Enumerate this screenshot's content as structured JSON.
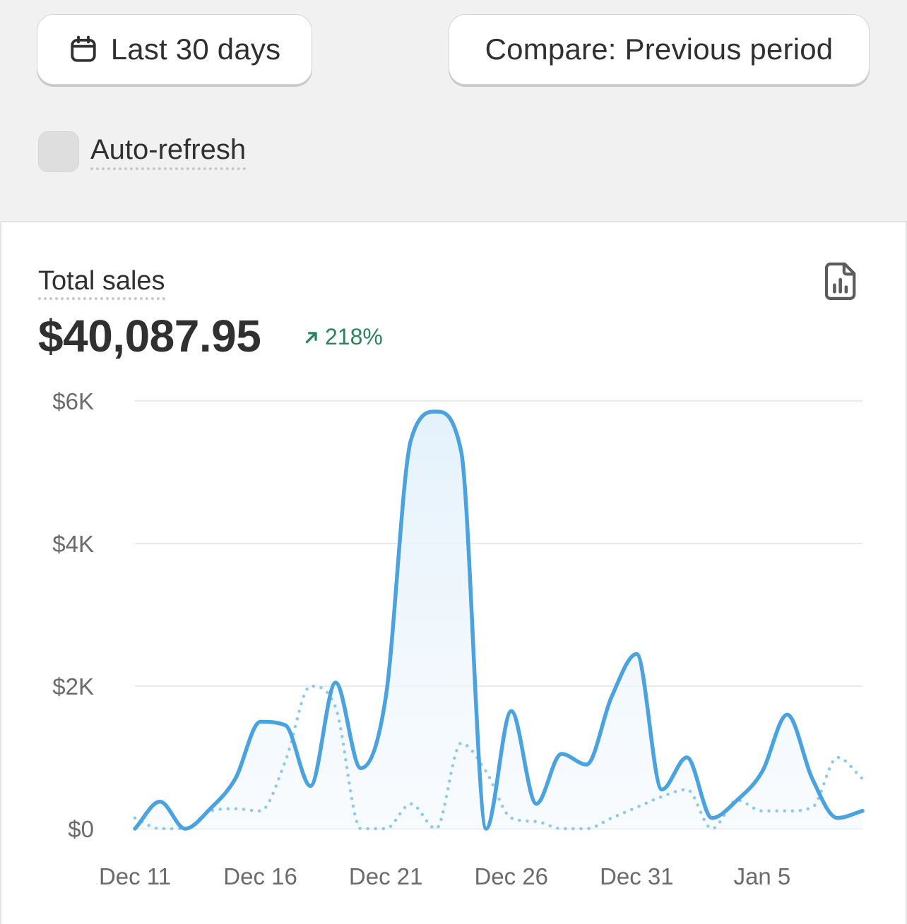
{
  "toolbar": {
    "date_range_label": "Last 30 days",
    "compare_label": "Compare: Previous period",
    "auto_refresh_label": "Auto-refresh",
    "auto_refresh_checked": false
  },
  "metric": {
    "title": "Total sales",
    "value": "$40,087.95",
    "change": "218%",
    "change_direction": "up",
    "change_color": "#29845a"
  },
  "icons": {
    "date_range": "calendar-icon",
    "report": "report-icon",
    "change": "arrow-up-right-icon"
  },
  "colors": {
    "current": "#4aa3df",
    "previous": "#8ccbee",
    "grid": "#ebebeb"
  },
  "chart_data": {
    "type": "line",
    "ylim": [
      0,
      6000
    ],
    "yticks": [
      0,
      2000,
      4000,
      6000
    ],
    "ytick_labels": [
      "$0",
      "$2K",
      "$4K",
      "$6K"
    ],
    "xtick_labels": [
      "Dec 11",
      "Dec 16",
      "Dec 21",
      "Dec 26",
      "Dec 31",
      "Jan 5"
    ],
    "grid": true,
    "x": [
      "Dec 11",
      "Dec 12",
      "Dec 13",
      "Dec 14",
      "Dec 15",
      "Dec 16",
      "Dec 17",
      "Dec 18",
      "Dec 19",
      "Dec 20",
      "Dec 21",
      "Dec 22",
      "Dec 23",
      "Dec 24",
      "Dec 25",
      "Dec 26",
      "Dec 27",
      "Dec 28",
      "Dec 29",
      "Dec 30",
      "Dec 31",
      "Jan 1",
      "Jan 2",
      "Jan 3",
      "Jan 4",
      "Jan 5",
      "Jan 6",
      "Jan 7",
      "Jan 8",
      "Jan 9"
    ],
    "series": [
      {
        "values": [
          0,
          380,
          0,
          280,
          700,
          1500,
          1450,
          600,
          2050,
          850,
          1850,
          5450,
          5850,
          5300,
          0,
          1650,
          350,
          1050,
          900,
          1850,
          2450,
          550,
          1000,
          150,
          400,
          800,
          1600,
          700,
          150,
          250
        ],
        "area": true,
        "style": "solid"
      },
      {
        "values": [
          150,
          0,
          0,
          250,
          280,
          250,
          950,
          2000,
          1700,
          0,
          0,
          350,
          0,
          1200,
          800,
          150,
          100,
          0,
          0,
          150,
          300,
          450,
          550,
          0,
          400,
          250,
          250,
          300,
          1000,
          700
        ],
        "area": false,
        "style": "dotted"
      }
    ]
  }
}
